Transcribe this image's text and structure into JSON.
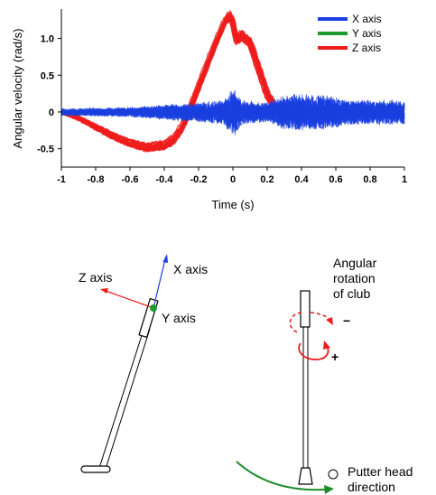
{
  "chart_data": {
    "type": "line",
    "xlabel": "Time (s)",
    "ylabel": "Angular velocity (rad/s)",
    "xlim": [
      -1,
      1
    ],
    "ylim": [
      -0.75,
      1.4
    ],
    "x_ticks": [
      -1,
      -0.8,
      -0.6,
      -0.4,
      -0.2,
      0,
      0.2,
      0.4,
      0.6,
      0.8,
      1
    ],
    "x_tick_labels": [
      "-1",
      "-0.8",
      "-0.6",
      "-0.4",
      "-0.2",
      "0",
      "0.2",
      "0.4",
      "0.6",
      "0.8",
      "1"
    ],
    "y_ticks": [
      -0.5,
      0,
      0.5,
      1
    ],
    "y_tick_labels": [
      "-0.5",
      "0",
      "0.5",
      "1.0"
    ],
    "grid": false,
    "legend_position": "top-right",
    "series": [
      {
        "name": "X axis",
        "color": "#1a3fe0",
        "x": [
          -1,
          -0.8,
          -0.6,
          -0.4,
          -0.2,
          -0.05,
          0,
          0.05,
          0.2,
          0.4,
          0.6,
          0.8,
          1
        ],
        "y": [
          0,
          0,
          0,
          0,
          0,
          0,
          0,
          0,
          0,
          0,
          0,
          0,
          0
        ]
      },
      {
        "name": "Y axis",
        "color": "#1d9b2e",
        "x": [
          -1,
          -0.8,
          -0.6,
          -0.4,
          -0.2,
          -0.05,
          0,
          0.05,
          0.2,
          0.4,
          0.6,
          0.8,
          1
        ],
        "y": [
          0,
          0.01,
          0.02,
          0.03,
          0.02,
          0.02,
          0,
          0.02,
          0.03,
          0.02,
          0.02,
          0.01,
          0.02
        ]
      },
      {
        "name": "Z axis",
        "color": "#ee1c1c",
        "x": [
          -1,
          -0.9,
          -0.8,
          -0.7,
          -0.6,
          -0.5,
          -0.4,
          -0.35,
          -0.3,
          -0.25,
          -0.2,
          -0.15,
          -0.1,
          -0.05,
          -0.02,
          0,
          0.02,
          0.05,
          0.1,
          0.15,
          0.2,
          0.25,
          0.3
        ],
        "y": [
          0,
          -0.08,
          -0.2,
          -0.32,
          -0.42,
          -0.48,
          -0.45,
          -0.38,
          -0.22,
          0.05,
          0.35,
          0.65,
          0.95,
          1.22,
          1.32,
          1.22,
          0.98,
          1.05,
          0.95,
          0.6,
          0.25,
          0.05,
          0
        ]
      }
    ],
    "variability": {
      "X axis": {
        "x": [
          -1,
          -0.6,
          -0.35,
          -0.2,
          -0.05,
          0,
          0.05,
          0.2,
          0.3,
          0.5,
          0.7,
          0.9,
          1
        ],
        "amplitude": [
          0.04,
          0.06,
          0.1,
          0.12,
          0.15,
          0.32,
          0.15,
          0.12,
          0.22,
          0.22,
          0.15,
          0.15,
          0.15
        ]
      },
      "Y axis": {
        "x": [
          -1,
          -0.5,
          0,
          0.3,
          0.6,
          1
        ],
        "amplitude": [
          0.02,
          0.02,
          0.03,
          0.06,
          0.08,
          0.08
        ]
      },
      "Z axis": {
        "x": [
          -1,
          -0.6,
          -0.4,
          -0.2,
          -0.05,
          0,
          0.05,
          0.2,
          0.3
        ],
        "amplitude": [
          0.02,
          0.05,
          0.06,
          0.05,
          0.04,
          0.06,
          0.06,
          0.07,
          0.03
        ]
      }
    }
  },
  "diagram": {
    "left": {
      "z_axis_label": "Z axis",
      "x_axis_label": "X axis",
      "y_axis_label": "Y axis"
    },
    "right": {
      "rotation_label_lines": [
        "Angular",
        "rotation",
        "of club"
      ],
      "minus_sign": "−",
      "plus_sign": "+",
      "putter_label_lines": [
        "Putter head",
        "direction"
      ]
    },
    "colors": {
      "club_line": "#000000",
      "x_axis_arrow": "#1a3fe0",
      "z_axis_arrow": "#ee1c1c",
      "y_axis_dot": "#1d9b2e",
      "rotation_arrow": "#ee1c1c",
      "putter_direction_arrow": "#1d8a2a"
    }
  }
}
